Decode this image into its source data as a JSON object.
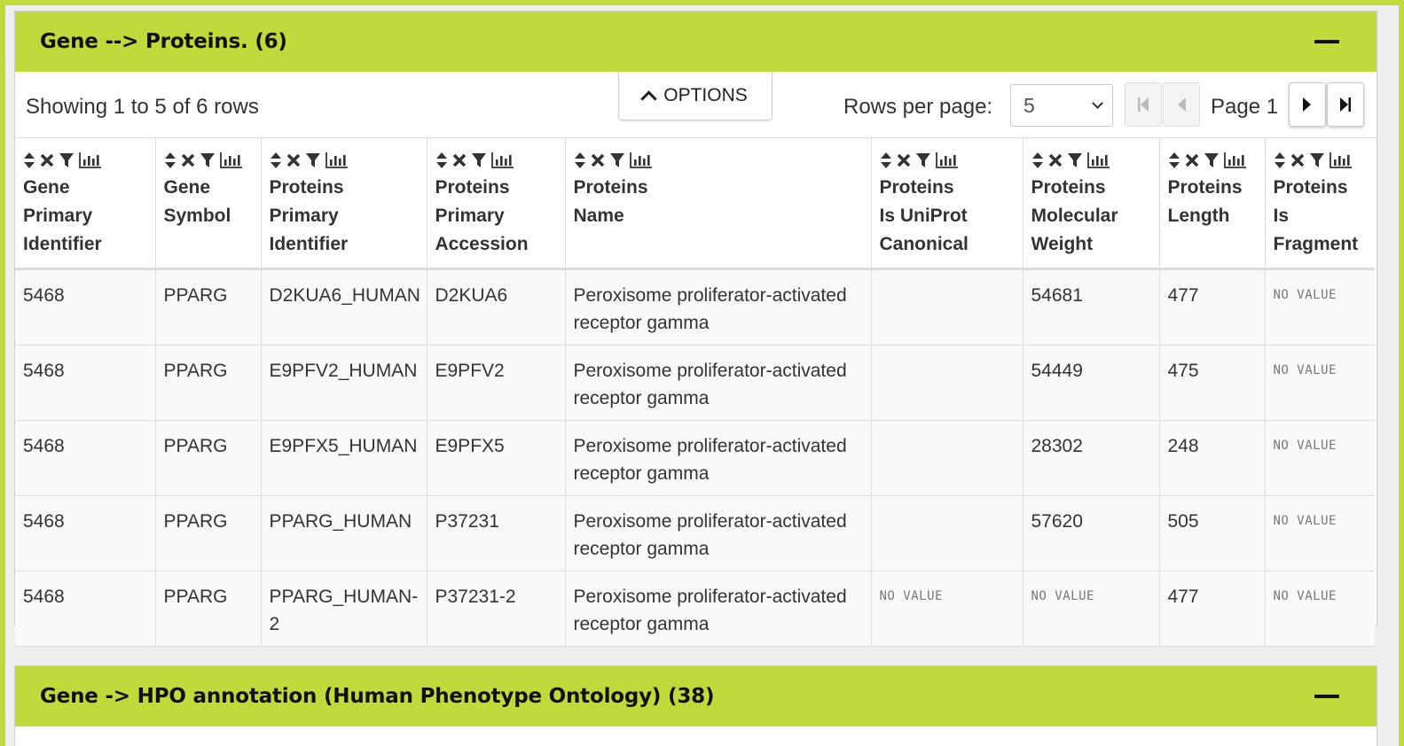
{
  "panel1": {
    "title": "Gene --> Proteins. (6)",
    "showing": "Showing 1 to 5 of 6 rows",
    "options_label": "OPTIONS",
    "rows_per_page_label": "Rows per page:",
    "rows_per_page_value": "5",
    "page_label": "Page 1",
    "columns": [
      [
        "Gene",
        "Primary",
        "Identifier"
      ],
      [
        "Gene",
        "Symbol",
        ""
      ],
      [
        "Proteins",
        "Primary",
        "Identifier"
      ],
      [
        "Proteins",
        "Primary",
        "Accession"
      ],
      [
        "Proteins",
        "Name",
        ""
      ],
      [
        "Proteins",
        "Is UniProt",
        "Canonical"
      ],
      [
        "Proteins",
        "Molecular",
        "Weight"
      ],
      [
        "Proteins",
        "Length",
        ""
      ],
      [
        "Proteins",
        "Is",
        "Fragment"
      ]
    ],
    "rows": [
      [
        [
          "5468"
        ],
        [
          "PPARG"
        ],
        [
          "D2KUA6_HUMAN"
        ],
        [
          "D2KUA6"
        ],
        [
          "Peroxisome proliferator-activated",
          "receptor gamma"
        ],
        [
          ""
        ],
        [
          "54681"
        ],
        [
          "477"
        ],
        [
          "NO VALUE"
        ]
      ],
      [
        [
          "5468"
        ],
        [
          "PPARG"
        ],
        [
          "E9PFV2_HUMAN"
        ],
        [
          "E9PFV2"
        ],
        [
          "Peroxisome proliferator-activated",
          "receptor gamma"
        ],
        [
          ""
        ],
        [
          "54449"
        ],
        [
          "475"
        ],
        [
          "NO VALUE"
        ]
      ],
      [
        [
          "5468"
        ],
        [
          "PPARG"
        ],
        [
          "E9PFX5_HUMAN"
        ],
        [
          "E9PFX5"
        ],
        [
          "Peroxisome proliferator-activated",
          "receptor gamma"
        ],
        [
          ""
        ],
        [
          "28302"
        ],
        [
          "248"
        ],
        [
          "NO VALUE"
        ]
      ],
      [
        [
          "5468"
        ],
        [
          "PPARG"
        ],
        [
          "PPARG_HUMAN"
        ],
        [
          "P37231"
        ],
        [
          "Peroxisome proliferator-activated",
          "receptor gamma"
        ],
        [
          ""
        ],
        [
          "57620"
        ],
        [
          "505"
        ],
        [
          "NO VALUE"
        ]
      ],
      [
        [
          "5468"
        ],
        [
          "PPARG"
        ],
        [
          "PPARG_HUMAN-",
          "2"
        ],
        [
          "P37231-2"
        ],
        [
          "Peroxisome proliferator-activated",
          "receptor gamma"
        ],
        [
          "NO VALUE"
        ],
        [
          "NO VALUE"
        ],
        [
          "477"
        ],
        [
          "NO VALUE"
        ]
      ]
    ]
  },
  "panel2": {
    "title": "Gene -> HPO annotation (Human Phenotype Ontology) (38)"
  },
  "no_value_text": "NO VALUE",
  "colors": {
    "accent": "#c2d93b",
    "border": "#dddddd"
  }
}
